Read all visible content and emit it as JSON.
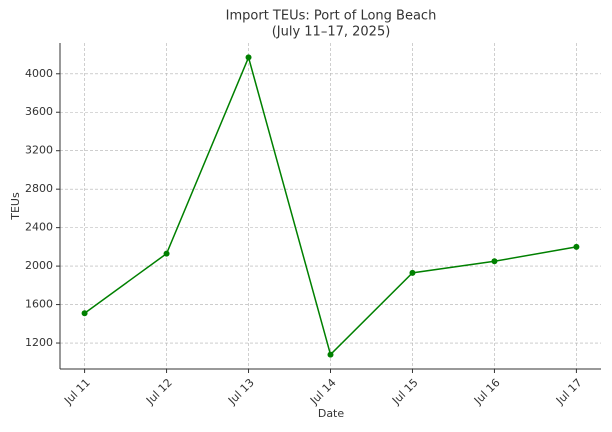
{
  "chart_data": {
    "type": "line",
    "title": "Import TEUs: Port of Long Beach",
    "subtitle": "(July 11–17, 2025)",
    "x_label": "Date",
    "y_label": "TEUs",
    "categories": [
      "Jul 11",
      "Jul 12",
      "Jul 13",
      "Jul 14",
      "Jul 15",
      "Jul 16",
      "Jul 17"
    ],
    "series": [
      {
        "name": "Import TEUs",
        "color": "#008000",
        "values": [
          1510,
          2130,
          4170,
          1080,
          1930,
          2050,
          2200
        ]
      }
    ],
    "ylim": [
      930,
      4320
    ],
    "yticks": [
      1200,
      1600,
      2000,
      2400,
      2800,
      3200,
      3600,
      4000
    ],
    "grid": true
  }
}
